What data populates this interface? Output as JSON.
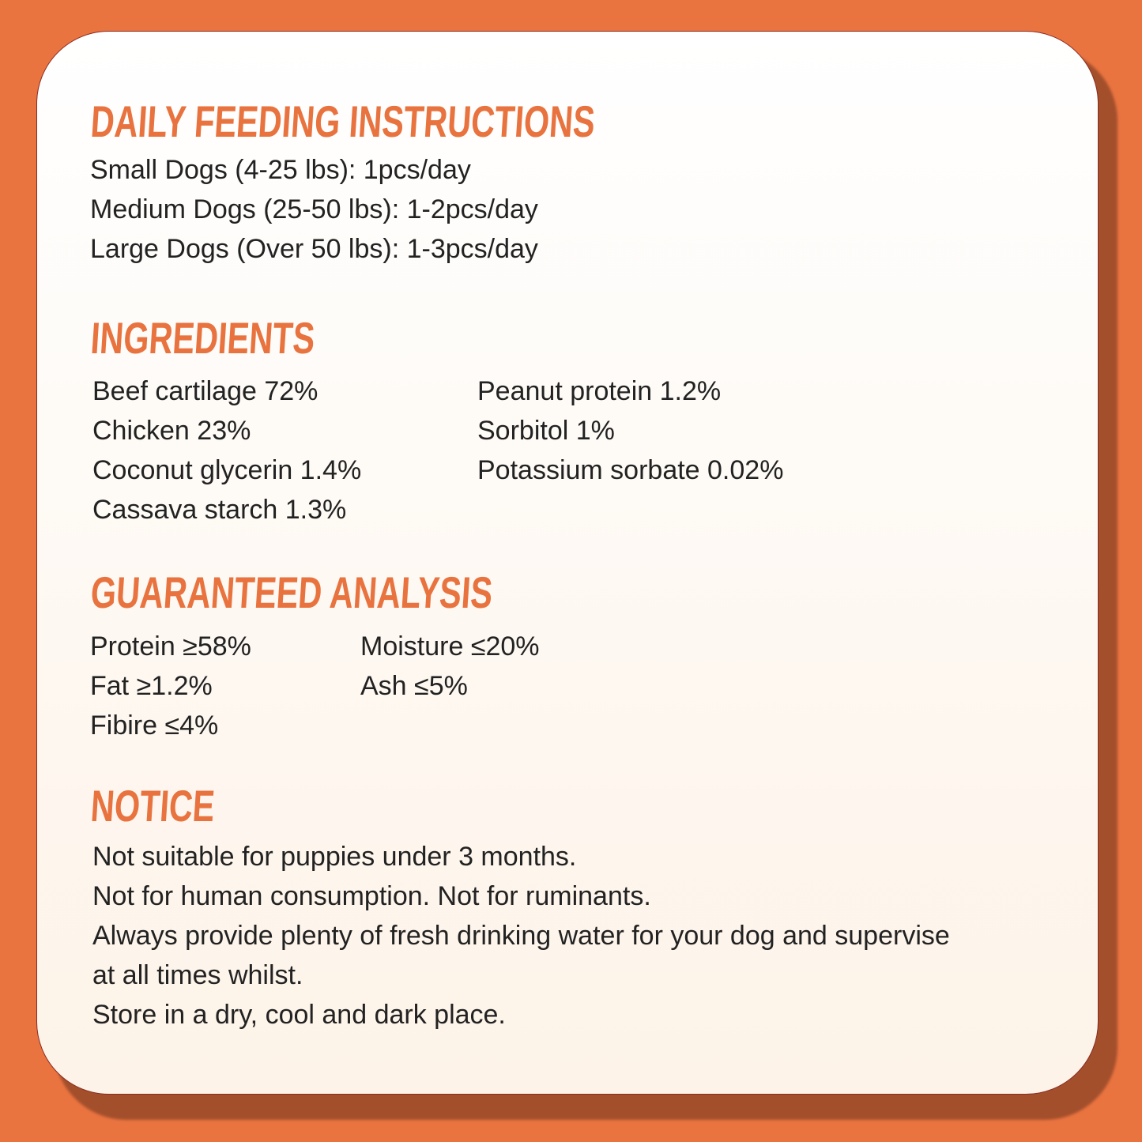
{
  "colors": {
    "background": "#ea7440",
    "heading": "#e8733f",
    "card": "#fdf3e8",
    "shadow": "#a34f2c",
    "text": "#222222"
  },
  "feeding": {
    "title": "DAILY FEEDING INSTRUCTIONS",
    "lines": [
      "Small Dogs (4-25 lbs): 1pcs/day",
      "Medium Dogs (25-50 lbs): 1-2pcs/day",
      "Large Dogs (Over 50 lbs): 1-3pcs/day"
    ]
  },
  "ingredients": {
    "title": "INGREDIENTS",
    "col1": [
      "Beef cartilage 72%",
      "Chicken 23%",
      "Coconut glycerin 1.4%",
      "Cassava starch 1.3%"
    ],
    "col2": [
      "Peanut protein 1.2%",
      "Sorbitol 1%",
      "Potassium sorbate 0.02%"
    ]
  },
  "analysis": {
    "title": "GUARANTEED ANALYSIS",
    "col1": [
      "Protein ≥58%",
      "Fat ≥1.2%",
      "Fibire ≤4%"
    ],
    "col2": [
      "Moisture ≤20%",
      "Ash ≤5%"
    ]
  },
  "notice": {
    "title": "NOTICE",
    "lines": [
      "Not suitable for puppies under 3 months.",
      "Not for human consumption. Not for ruminants.",
      "Always provide plenty of fresh drinking water for your dog and supervise",
      "at all times whilst.",
      "Store in a dry, cool and dark place."
    ]
  }
}
